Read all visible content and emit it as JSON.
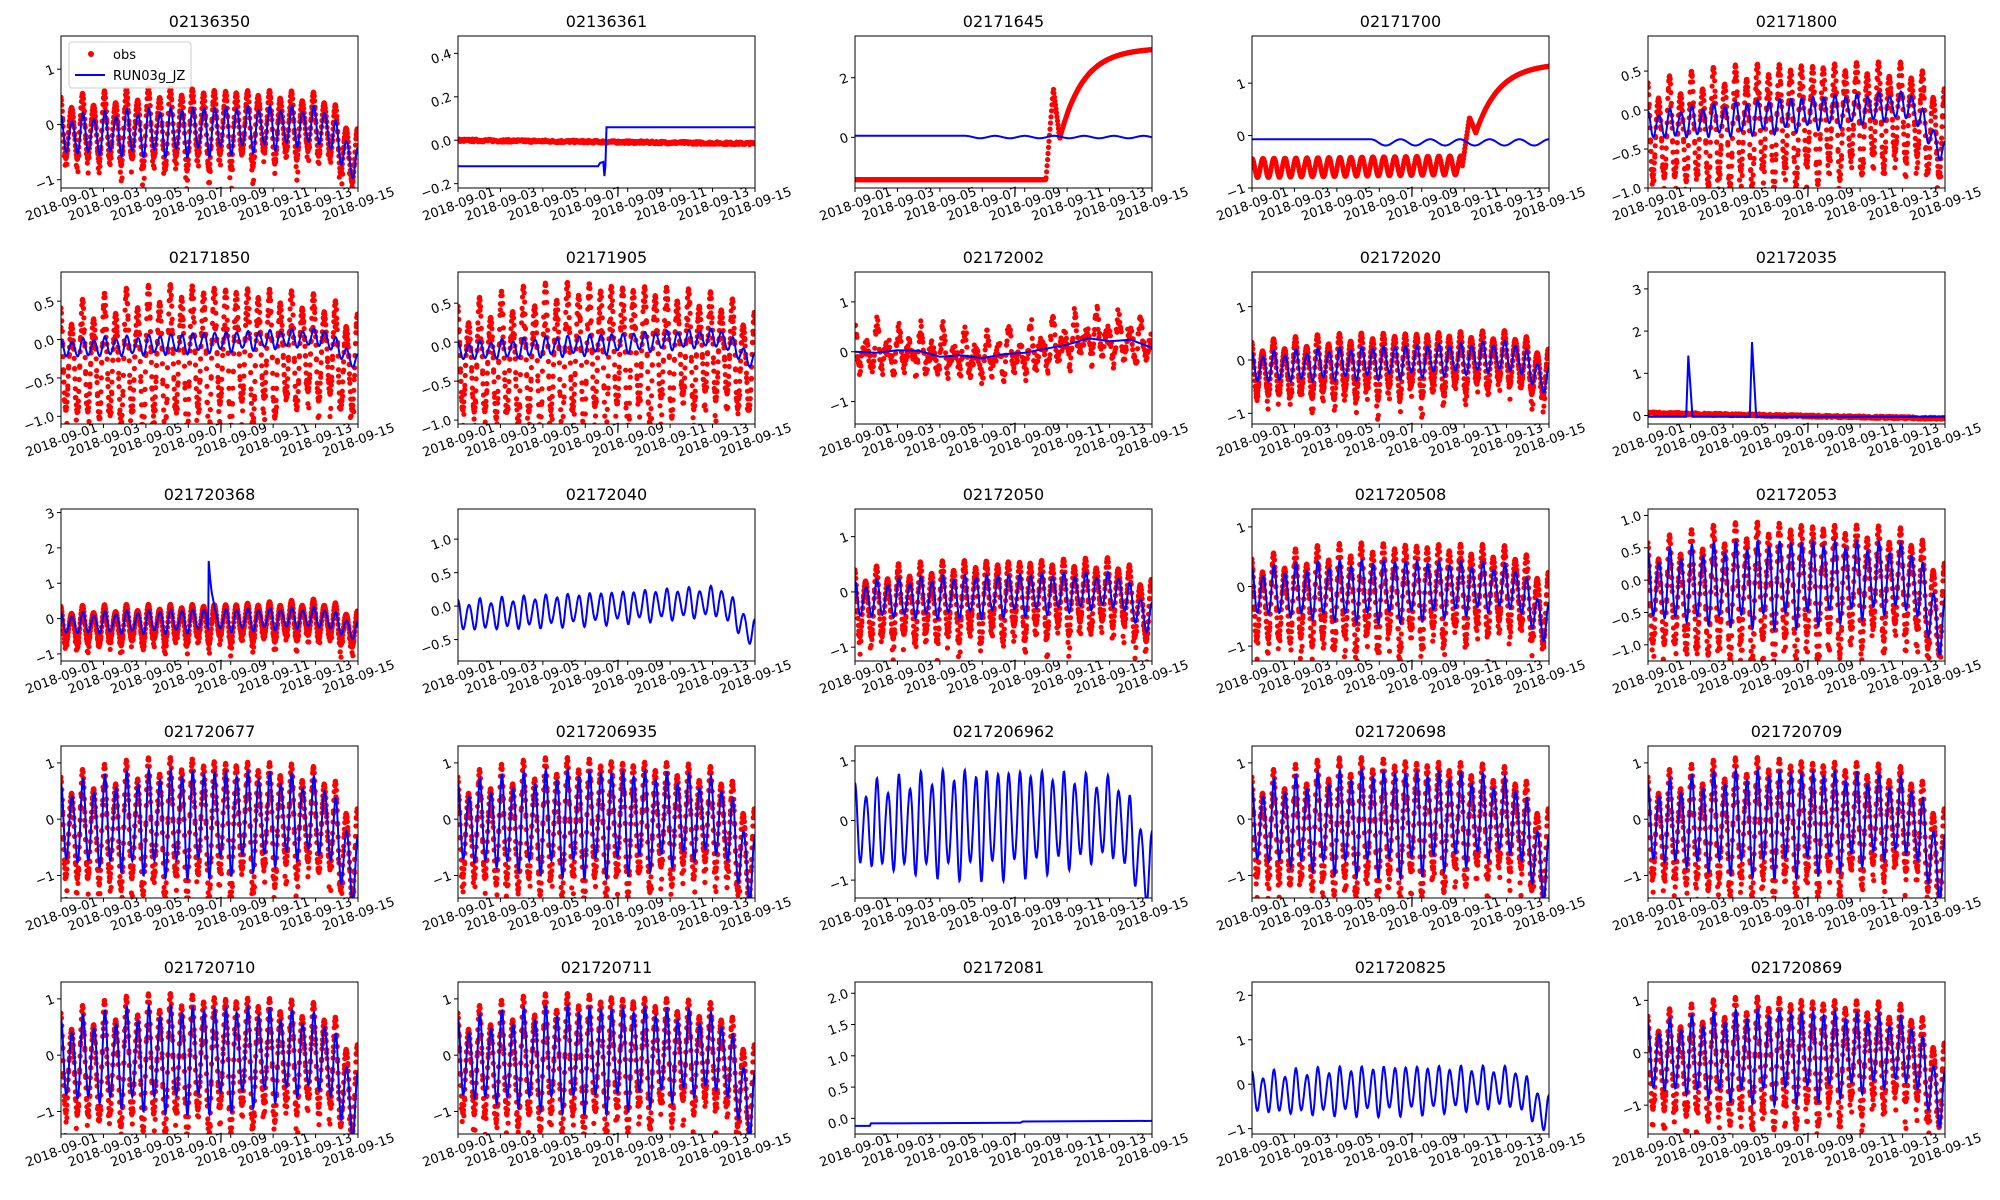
{
  "chart_data": {
    "type": "line",
    "x_range": [
      "2018-09-01",
      "2018-09-15"
    ],
    "x_ticks": [
      "2018-09-01",
      "2018-09-03",
      "2018-09-05",
      "2018-09-07",
      "2018-09-09",
      "2018-09-11",
      "2018-09-13",
      "2018-09-15"
    ],
    "legend": {
      "position": "upper-left",
      "entries": [
        {
          "label": "obs",
          "color": "#ff0000",
          "marker": "dot"
        },
        {
          "label": "RUN03g_JZ",
          "color": "#0000ff",
          "marker": "line"
        }
      ]
    },
    "colors": {
      "obs": "#ff0000",
      "model": "#0000ff"
    },
    "cycles_per_day": 1.93,
    "panels": [
      {
        "title": "02136350",
        "ylim": [
          -1.15,
          1.6
        ],
        "yticks": [
          "-1",
          "0",
          "1"
        ],
        "ytick_values": [
          -1,
          0,
          1
        ],
        "legend": true,
        "kind": "tidal",
        "model": {
          "mean_start": -0.2,
          "mean_end": 0.0,
          "amp_start": 0.3,
          "amp_peak": 0.4,
          "end_drop": -0.8
        },
        "obs": {
          "mean_start": -0.1,
          "mean_end": 0.0,
          "amp_start": 0.5,
          "amp_peak": 0.65,
          "end_drop": -0.7
        }
      },
      {
        "title": "02136361",
        "ylim": [
          -0.22,
          0.48
        ],
        "yticks": [
          "-0.2",
          "0.0",
          "0.2",
          "0.4"
        ],
        "ytick_values": [
          -0.2,
          0,
          0.2,
          0.4
        ],
        "kind": "step",
        "model": {
          "before": -0.12,
          "after": 0.06,
          "step_day": 6.95
        },
        "obs": {
          "level": 0.0,
          "end_level": -0.015
        }
      },
      {
        "title": "02171645",
        "ylim": [
          -1.7,
          3.4
        ],
        "yticks": [
          "0",
          "2"
        ],
        "ytick_values": [
          0,
          2
        ],
        "kind": "rise",
        "model": {
          "level": 0.05,
          "wiggle_start_day": 5.2,
          "wiggle_amp": 0.08
        },
        "obs": {
          "low": -1.42,
          "rise_day": 9.0,
          "spike": 1.65,
          "dip": -0.05,
          "plateau": 3.0
        }
      },
      {
        "title": "02171700",
        "ylim": [
          -1.0,
          1.9
        ],
        "yticks": [
          "-1",
          "0",
          "1"
        ],
        "ytick_values": [
          -1,
          0,
          1
        ],
        "kind": "rise",
        "model": {
          "level": -0.07,
          "wiggle_start_day": 5.6,
          "wiggle_amp": 0.12
        },
        "obs": {
          "low": -0.62,
          "low_amp": 0.18,
          "rise_day": 9.9,
          "spike": 0.35,
          "dip": 0.05,
          "plateau": 1.38
        }
      },
      {
        "title": "02171800",
        "ylim": [
          -1.0,
          0.95
        ],
        "yticks": [
          "-1.0",
          "-0.5",
          "0.0",
          "0.5"
        ],
        "ytick_values": [
          -1,
          -0.5,
          0,
          0.5
        ],
        "kind": "tidal",
        "model": {
          "mean_start": -0.2,
          "mean_end": 0.1,
          "amp_start": 0.15,
          "amp_peak": 0.2,
          "end_drop": -0.7
        },
        "obs": {
          "mean_start": -0.3,
          "mean_end": 0.0,
          "amp_start": 0.55,
          "amp_peak": 0.7,
          "end_drop": -0.4
        }
      },
      {
        "title": "02171850",
        "ylim": [
          -1.1,
          0.88
        ],
        "yticks": [
          "-1.0",
          "-0.5",
          "0.0",
          "0.5"
        ],
        "ytick_values": [
          -1,
          -0.5,
          0,
          0.5
        ],
        "kind": "tidal",
        "model": {
          "mean_start": -0.12,
          "mean_end": 0.05,
          "amp_start": 0.1,
          "amp_peak": 0.12,
          "end_drop": -0.37
        },
        "obs": {
          "mean_start": -0.3,
          "mean_end": -0.1,
          "amp_start": 0.6,
          "amp_peak": 0.85,
          "end_drop": -0.3
        }
      },
      {
        "title": "02171905",
        "ylim": [
          -1.05,
          0.9
        ],
        "yticks": [
          "-1.0",
          "-0.5",
          "0.0",
          "0.5"
        ],
        "ytick_values": [
          -1,
          -0.5,
          0,
          0.5
        ],
        "kind": "tidal",
        "model": {
          "mean_start": -0.12,
          "mean_end": 0.08,
          "amp_start": 0.1,
          "amp_peak": 0.12,
          "end_drop": -0.35
        },
        "obs": {
          "mean_start": -0.25,
          "mean_end": -0.05,
          "amp_start": 0.6,
          "amp_peak": 0.85,
          "end_drop": -0.3
        }
      },
      {
        "title": "02172002",
        "ylim": [
          -1.45,
          1.6
        ],
        "yticks": [
          "-1",
          "0",
          "1"
        ],
        "ytick_values": [
          -1,
          0,
          1
        ],
        "kind": "noisy",
        "model": {
          "points": [
            0,
            -0.02,
            0.03,
            0.02,
            -0.1,
            -0.07,
            -0.13,
            -0.05,
            -0.02,
            0.06,
            0.14,
            0.27,
            0.21,
            0.24,
            0.08
          ]
        },
        "obs": {
          "amp": 0.55
        }
      },
      {
        "title": "02172020",
        "ylim": [
          -1.2,
          1.65
        ],
        "yticks": [
          "-1",
          "0",
          "1"
        ],
        "ytick_values": [
          -1,
          0,
          1
        ],
        "kind": "tidal",
        "model": {
          "mean_start": -0.15,
          "mean_end": 0.1,
          "amp_start": 0.25,
          "amp_peak": 0.28,
          "end_drop": -0.55
        },
        "obs": {
          "mean_start": -0.2,
          "mean_end": 0.05,
          "amp_start": 0.45,
          "amp_peak": 0.55,
          "end_drop": -0.4
        }
      },
      {
        "title": "02172035",
        "ylim": [
          -0.2,
          3.4
        ],
        "yticks": [
          "0",
          "1",
          "2",
          "3"
        ],
        "ytick_values": [
          0,
          1,
          2,
          3
        ],
        "kind": "spikes",
        "model": {
          "level": -0.03,
          "spikes": [
            [
              1.9,
              1.42
            ],
            [
              4.9,
              1.74
            ]
          ]
        },
        "obs": {
          "level_start": 0.06,
          "level_end": -0.07
        }
      },
      {
        "title": "021720368",
        "ylim": [
          -1.2,
          3.1
        ],
        "yticks": [
          "-1",
          "0",
          "1",
          "2",
          "3"
        ],
        "ytick_values": [
          -1,
          0,
          1,
          2,
          3
        ],
        "kind": "tidal",
        "model": {
          "mean_start": -0.15,
          "mean_end": 0.05,
          "amp_start": 0.25,
          "amp_peak": 0.3,
          "end_drop": -0.45,
          "spike": [
            6.95,
            1.7
          ]
        },
        "obs": {
          "mean_start": -0.25,
          "mean_end": 0.0,
          "amp_start": 0.5,
          "amp_peak": 0.5,
          "end_drop": -0.4
        }
      },
      {
        "title": "02172040",
        "ylim": [
          -0.82,
          1.45
        ],
        "yticks": [
          "-0.5",
          "0.0",
          "0.5",
          "1.0"
        ],
        "ytick_values": [
          -0.5,
          0,
          0.5,
          1.0
        ],
        "kind": "model_only",
        "model": {
          "mean_start": -0.15,
          "mean_end": 0.1,
          "amp_start": 0.2,
          "amp_peak": 0.22,
          "end_drop": -0.55
        }
      },
      {
        "title": "02172050",
        "ylim": [
          -1.25,
          1.5
        ],
        "yticks": [
          "-1",
          "0",
          "1"
        ],
        "ytick_values": [
          -1,
          0,
          1
        ],
        "kind": "tidal",
        "model": {
          "mean_start": -0.15,
          "mean_end": 0.05,
          "amp_start": 0.28,
          "amp_peak": 0.35,
          "end_drop": -0.6
        },
        "obs": {
          "mean_start": -0.25,
          "mean_end": 0.0,
          "amp_start": 0.55,
          "amp_peak": 0.65,
          "end_drop": -0.45
        }
      },
      {
        "title": "021720508",
        "ylim": [
          -1.25,
          1.3
        ],
        "yticks": [
          "-1",
          "0",
          "1"
        ],
        "ytick_values": [
          -1,
          0,
          1
        ],
        "kind": "tidal",
        "model": {
          "mean_start": -0.1,
          "mean_end": 0.0,
          "amp_start": 0.33,
          "amp_peak": 0.47,
          "end_drop": -0.7
        },
        "obs": {
          "mean_start": -0.25,
          "mean_end": 0.0,
          "amp_start": 0.6,
          "amp_peak": 0.8,
          "end_drop": -0.5
        }
      },
      {
        "title": "02172053",
        "ylim": [
          -1.25,
          1.1
        ],
        "yticks": [
          "-1.0",
          "-0.5",
          "0.0",
          "0.5",
          "1.0"
        ],
        "ytick_values": [
          -1,
          -0.5,
          0,
          0.5,
          1.0
        ],
        "kind": "tidal",
        "model": {
          "mean_start": -0.1,
          "mean_end": 0.05,
          "amp_start": 0.45,
          "amp_peak": 0.6,
          "end_drop": -0.9
        },
        "obs": {
          "mean_start": -0.25,
          "mean_end": 0.0,
          "amp_start": 0.7,
          "amp_peak": 0.95,
          "end_drop": -0.6
        }
      },
      {
        "title": "021720677",
        "ylim": [
          -1.4,
          1.3
        ],
        "yticks": [
          "-1",
          "0",
          "1"
        ],
        "ytick_values": [
          -1,
          0,
          1
        ],
        "kind": "tidal",
        "model": {
          "mean_start": -0.1,
          "mean_end": 0.05,
          "amp_start": 0.6,
          "amp_peak": 0.85,
          "end_drop": -1.1
        },
        "obs": {
          "mean_start": -0.2,
          "mean_end": 0.0,
          "amp_start": 0.8,
          "amp_peak": 1.1,
          "end_drop": -0.8
        }
      },
      {
        "title": "0217206935",
        "ylim": [
          -1.4,
          1.3
        ],
        "yticks": [
          "-1",
          "0",
          "1"
        ],
        "ytick_values": [
          -1,
          0,
          1
        ],
        "kind": "tidal",
        "model": {
          "mean_start": -0.1,
          "mean_end": 0.05,
          "amp_start": 0.6,
          "amp_peak": 0.85,
          "end_drop": -1.1
        },
        "obs": {
          "mean_start": -0.2,
          "mean_end": 0.0,
          "amp_start": 0.8,
          "amp_peak": 1.1,
          "end_drop": -0.8
        }
      },
      {
        "title": "0217206962",
        "ylim": [
          -1.3,
          1.25
        ],
        "yticks": [
          "-1",
          "0",
          "1"
        ],
        "ytick_values": [
          -1,
          0,
          1
        ],
        "kind": "model_only",
        "model": {
          "mean_start": -0.1,
          "mean_end": 0.05,
          "amp_start": 0.6,
          "amp_peak": 0.82,
          "end_drop": -1.0
        }
      },
      {
        "title": "021720698",
        "ylim": [
          -1.4,
          1.3
        ],
        "yticks": [
          "-1",
          "0",
          "1"
        ],
        "ytick_values": [
          -1,
          0,
          1
        ],
        "kind": "tidal",
        "model": {
          "mean_start": -0.1,
          "mean_end": 0.05,
          "amp_start": 0.6,
          "amp_peak": 0.85,
          "end_drop": -1.1
        },
        "obs": {
          "mean_start": -0.2,
          "mean_end": 0.0,
          "amp_start": 0.8,
          "amp_peak": 1.1,
          "end_drop": -0.8
        }
      },
      {
        "title": "021720709",
        "ylim": [
          -1.4,
          1.3
        ],
        "yticks": [
          "-1",
          "0",
          "1"
        ],
        "ytick_values": [
          -1,
          0,
          1
        ],
        "kind": "tidal",
        "model": {
          "mean_start": -0.1,
          "mean_end": 0.05,
          "amp_start": 0.6,
          "amp_peak": 0.85,
          "end_drop": -1.1
        },
        "obs": {
          "mean_start": -0.2,
          "mean_end": 0.0,
          "amp_start": 0.8,
          "amp_peak": 1.1,
          "end_drop": -0.8
        }
      },
      {
        "title": "021720710",
        "ylim": [
          -1.4,
          1.3
        ],
        "yticks": [
          "-1",
          "0",
          "1"
        ],
        "ytick_values": [
          -1,
          0,
          1
        ],
        "kind": "tidal",
        "model": {
          "mean_start": -0.1,
          "mean_end": 0.05,
          "amp_start": 0.6,
          "amp_peak": 0.85,
          "end_drop": -1.1
        },
        "obs": {
          "mean_start": -0.2,
          "mean_end": 0.0,
          "amp_start": 0.8,
          "amp_peak": 1.1,
          "end_drop": -0.8
        }
      },
      {
        "title": "021720711",
        "ylim": [
          -1.4,
          1.3
        ],
        "yticks": [
          "-1",
          "0",
          "1"
        ],
        "ytick_values": [
          -1,
          0,
          1
        ],
        "kind": "tidal",
        "model": {
          "mean_start": -0.1,
          "mean_end": 0.05,
          "amp_start": 0.6,
          "amp_peak": 0.85,
          "end_drop": -1.1
        },
        "obs": {
          "mean_start": -0.2,
          "mean_end": 0.0,
          "amp_start": 0.8,
          "amp_peak": 1.1,
          "end_drop": -0.8
        }
      },
      {
        "title": "02172081",
        "ylim": [
          -0.25,
          2.18
        ],
        "yticks": [
          "0.0",
          "0.5",
          "1.0",
          "1.5",
          "2.0"
        ],
        "ytick_values": [
          0,
          0.5,
          1.0,
          1.5,
          2.0
        ],
        "kind": "flat",
        "model": {
          "points": [
            [
              0,
              -0.12
            ],
            [
              0.7,
              -0.12
            ],
            [
              0.75,
              -0.08
            ],
            [
              7.8,
              -0.07
            ],
            [
              7.9,
              -0.05
            ],
            [
              14,
              -0.04
            ]
          ]
        }
      },
      {
        "title": "021720825",
        "ylim": [
          -1.12,
          2.3
        ],
        "yticks": [
          "-1",
          "0",
          "1",
          "2"
        ],
        "ytick_values": [
          -1,
          0,
          1,
          2
        ],
        "kind": "model_only",
        "model": {
          "mean_start": -0.2,
          "mean_end": -0.05,
          "amp_start": 0.4,
          "amp_peak": 0.5,
          "end_drop": -0.7
        }
      },
      {
        "title": "021720869",
        "ylim": [
          -1.55,
          1.35
        ],
        "yticks": [
          "-1",
          "0",
          "1"
        ],
        "ytick_values": [
          -1,
          0,
          1
        ],
        "kind": "tidal",
        "model": {
          "mean_start": -0.1,
          "mean_end": 0.05,
          "amp_start": 0.55,
          "amp_peak": 0.8,
          "end_drop": -1.1
        },
        "obs": {
          "mean_start": -0.25,
          "mean_end": 0.0,
          "amp_start": 0.8,
          "amp_peak": 1.1,
          "end_drop": -0.8
        }
      }
    ]
  }
}
